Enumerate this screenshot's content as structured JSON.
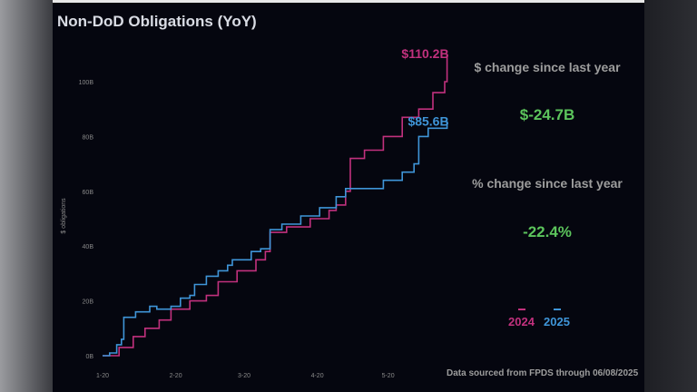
{
  "chart_data": {
    "type": "line",
    "title": "Non-DoD Obligations (YoY)",
    "xlabel": "",
    "ylabel": "$ obligations",
    "ylim": [
      0,
      110.2
    ],
    "y_ticks": [
      "0B",
      "20B",
      "40B",
      "60B",
      "80B",
      "100B"
    ],
    "x_ticks": [
      "1-20",
      "2-20",
      "3-20",
      "4-20",
      "5-20"
    ],
    "grid": false,
    "legend_position": "bottom-right",
    "series": [
      {
        "name": "2024",
        "color": "#c2317e",
        "end_label": "$110.2B",
        "points": [
          [
            "01-20",
            0
          ],
          [
            "01-27",
            3
          ],
          [
            "02-02",
            7
          ],
          [
            "02-07",
            10
          ],
          [
            "02-13",
            13
          ],
          [
            "02-18",
            17
          ],
          [
            "02-26",
            20
          ],
          [
            "03-04",
            22
          ],
          [
            "03-09",
            27
          ],
          [
            "03-17",
            31
          ],
          [
            "03-25",
            35
          ],
          [
            "03-29",
            38
          ],
          [
            "03-31",
            45
          ],
          [
            "04-07",
            47
          ],
          [
            "04-17",
            50
          ],
          [
            "04-25",
            53
          ],
          [
            "04-28",
            55
          ],
          [
            "05-02",
            60
          ],
          [
            "05-04",
            72
          ],
          [
            "05-10",
            75
          ],
          [
            "05-18",
            80
          ],
          [
            "05-26",
            87
          ],
          [
            "06-02",
            90
          ],
          [
            "06-08",
            96
          ],
          [
            "06-13",
            100
          ],
          [
            "06-14",
            110.2
          ]
        ]
      },
      {
        "name": "2025",
        "color": "#3f95d8",
        "end_label": "$85.6B",
        "points": [
          [
            "01-20",
            0
          ],
          [
            "01-23",
            1
          ],
          [
            "01-26",
            4
          ],
          [
            "01-28",
            6
          ],
          [
            "01-29",
            14
          ],
          [
            "02-03",
            16
          ],
          [
            "02-09",
            18
          ],
          [
            "02-12",
            17
          ],
          [
            "02-18",
            18
          ],
          [
            "02-22",
            21
          ],
          [
            "02-26",
            22
          ],
          [
            "02-28",
            26
          ],
          [
            "03-04",
            29
          ],
          [
            "03-09",
            31
          ],
          [
            "03-13",
            33
          ],
          [
            "03-15",
            35
          ],
          [
            "03-23",
            38
          ],
          [
            "03-27",
            39
          ],
          [
            "03-31",
            46
          ],
          [
            "04-05",
            48
          ],
          [
            "04-13",
            51
          ],
          [
            "04-21",
            54
          ],
          [
            "04-28",
            58
          ],
          [
            "05-02",
            61
          ],
          [
            "05-18",
            64
          ],
          [
            "05-26",
            67
          ],
          [
            "05-31",
            70
          ],
          [
            "06-02",
            80
          ],
          [
            "06-06",
            83
          ],
          [
            "06-14",
            85.6
          ]
        ]
      }
    ]
  },
  "annotations": {
    "dollar_change_label": "$ change since last year",
    "dollar_change_value": "$-24.7B",
    "pct_change_label": "% change since last year",
    "pct_change_value": "-22.4%",
    "value_color": "#5cc45c"
  },
  "legend": {
    "label_2024": "2024",
    "label_2025": "2025"
  },
  "footnote": "Data sourced from FPDS through 06/08/2025"
}
